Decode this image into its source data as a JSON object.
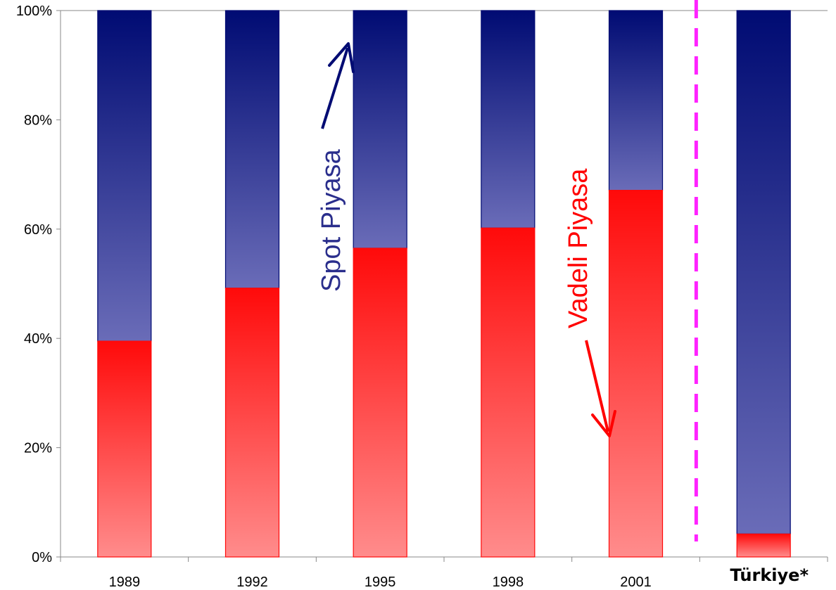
{
  "chart_data": {
    "type": "bar",
    "stacked": true,
    "normalized": true,
    "categories": [
      "1989",
      "1992",
      "1995",
      "1998",
      "2001",
      "Türkiye*"
    ],
    "series": [
      {
        "name": "Vadeli Piyasa",
        "values": [
          39.5,
          49.2,
          56.5,
          60.2,
          67.1,
          4.2
        ]
      },
      {
        "name": "Spot Piyasa",
        "values": [
          60.5,
          50.8,
          43.5,
          39.8,
          32.9,
          95.8
        ]
      }
    ],
    "yticks": [
      "0%",
      "20%",
      "40%",
      "60%",
      "80%",
      "100%"
    ],
    "ylim": [
      0,
      100
    ],
    "title": "",
    "xlabel": "",
    "ylabel": "",
    "grid": false,
    "annotations": {
      "spot": "Spot  Piyasa",
      "vadeli": "Vadeli Piyasa"
    },
    "separator_after_category": "2001",
    "bold_category": "Türkiye*",
    "colors": {
      "spot_dark": "#000b73",
      "spot_light": "#6a6cb8",
      "spot_text": "#2a2e8c",
      "spot_arrow": "#000b73",
      "vadeli_dark": "#ff0a0a",
      "vadeli_light": "#ff8c8c",
      "vadeli_text": "#ff0000",
      "separator": "#ff22ff",
      "axis": "#888888"
    }
  }
}
